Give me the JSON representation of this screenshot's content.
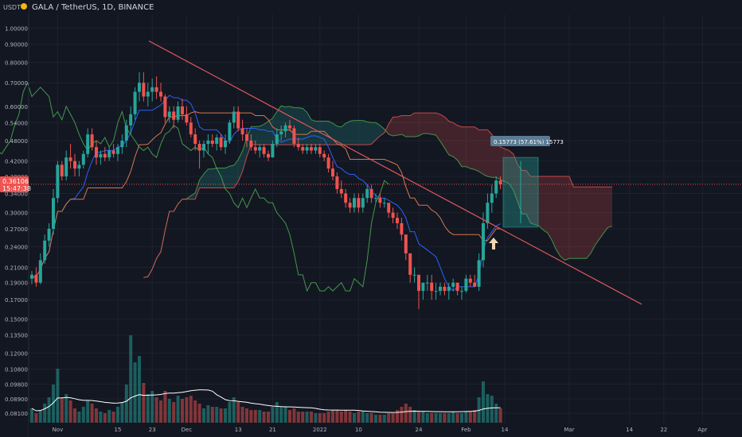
{
  "header": {
    "currency": "USDT",
    "title": "GALA / TetherUS, 1D, BINANCE"
  },
  "price_label": {
    "price": "0.36106",
    "countdown": "15:47:38"
  },
  "measure_label": "0.15773 (57.61%) 15773",
  "colors": {
    "background": "#131722",
    "grid": "#1e222d",
    "up": "#26a69a",
    "down": "#ef5350",
    "trendline": "#e2595d",
    "kijun": "#d7774a",
    "tenkan": "#2962ff",
    "lagging": "#4caf50",
    "spanA": "#4caf50",
    "spanB": "#ef5350",
    "volume_ma": "#ffffff",
    "arrow": "#f2d8b0"
  },
  "chart_data": {
    "type": "candlestick",
    "scale": "log",
    "ylim": [
      0.079,
      1.05
    ],
    "y_ticks": [
      "1.00000",
      "0.90000",
      "0.80000",
      "0.70000",
      "0.60000",
      "0.54000",
      "0.48000",
      "0.42000",
      "0.38000",
      "0.34000",
      "0.30000",
      "0.27000",
      "0.24000",
      "0.21000",
      "0.19000",
      "0.17000",
      "0.15000",
      "0.13500",
      "0.12000",
      "0.10800",
      "0.09800",
      "0.08900",
      "0.08100"
    ],
    "x_ticks": [
      "Nov",
      "15",
      "23",
      "Dec",
      "13",
      "21",
      "2022",
      "10",
      "24",
      "Feb",
      "14",
      "Mar",
      "14",
      "22",
      "Apr",
      "11"
    ],
    "candles": [
      [
        "2021-10-26",
        0.195,
        0.205,
        0.188,
        0.2
      ],
      [
        "2021-10-27",
        0.2,
        0.21,
        0.185,
        0.19
      ],
      [
        "2021-10-28",
        0.19,
        0.23,
        0.188,
        0.22
      ],
      [
        "2021-10-29",
        0.22,
        0.26,
        0.215,
        0.25
      ],
      [
        "2021-10-30",
        0.25,
        0.28,
        0.24,
        0.27
      ],
      [
        "2021-10-31",
        0.27,
        0.35,
        0.26,
        0.33
      ],
      [
        "2021-11-01",
        0.33,
        0.42,
        0.32,
        0.41
      ],
      [
        "2021-11-02",
        0.41,
        0.42,
        0.37,
        0.38
      ],
      [
        "2021-11-03",
        0.38,
        0.45,
        0.37,
        0.43
      ],
      [
        "2021-11-04",
        0.43,
        0.47,
        0.4,
        0.42
      ],
      [
        "2021-11-05",
        0.42,
        0.44,
        0.38,
        0.4
      ],
      [
        "2021-11-06",
        0.4,
        0.42,
        0.38,
        0.41
      ],
      [
        "2021-11-07",
        0.41,
        0.45,
        0.4,
        0.44
      ],
      [
        "2021-11-08",
        0.44,
        0.52,
        0.43,
        0.5
      ],
      [
        "2021-11-09",
        0.5,
        0.52,
        0.45,
        0.46
      ],
      [
        "2021-11-10",
        0.46,
        0.48,
        0.41,
        0.43
      ],
      [
        "2021-11-11",
        0.43,
        0.45,
        0.41,
        0.44
      ],
      [
        "2021-11-12",
        0.44,
        0.46,
        0.42,
        0.43
      ],
      [
        "2021-11-13",
        0.43,
        0.46,
        0.42,
        0.45
      ],
      [
        "2021-11-14",
        0.45,
        0.47,
        0.43,
        0.44
      ],
      [
        "2021-11-15",
        0.44,
        0.47,
        0.42,
        0.46
      ],
      [
        "2021-11-16",
        0.46,
        0.5,
        0.44,
        0.48
      ],
      [
        "2021-11-17",
        0.48,
        0.55,
        0.46,
        0.53
      ],
      [
        "2021-11-18",
        0.53,
        0.6,
        0.5,
        0.57
      ],
      [
        "2021-11-19",
        0.57,
        0.68,
        0.55,
        0.66
      ],
      [
        "2021-11-20",
        0.66,
        0.75,
        0.62,
        0.7
      ],
      [
        "2021-11-21",
        0.7,
        0.75,
        0.62,
        0.64
      ],
      [
        "2021-11-22",
        0.64,
        0.7,
        0.6,
        0.66
      ],
      [
        "2021-11-23",
        0.66,
        0.72,
        0.62,
        0.68
      ],
      [
        "2021-11-24",
        0.68,
        0.73,
        0.63,
        0.66
      ],
      [
        "2021-11-25",
        0.66,
        0.7,
        0.62,
        0.64
      ],
      [
        "2021-11-26",
        0.64,
        0.65,
        0.54,
        0.56
      ],
      [
        "2021-11-27",
        0.56,
        0.6,
        0.54,
        0.58
      ],
      [
        "2021-11-28",
        0.58,
        0.6,
        0.52,
        0.55
      ],
      [
        "2021-11-29",
        0.55,
        0.62,
        0.54,
        0.6
      ],
      [
        "2021-11-30",
        0.6,
        0.63,
        0.55,
        0.57
      ],
      [
        "2021-12-01",
        0.57,
        0.6,
        0.53,
        0.54
      ],
      [
        "2021-12-02",
        0.54,
        0.56,
        0.49,
        0.5
      ],
      [
        "2021-12-03",
        0.5,
        0.52,
        0.45,
        0.47
      ],
      [
        "2021-12-04",
        0.47,
        0.48,
        0.4,
        0.45
      ],
      [
        "2021-12-05",
        0.45,
        0.48,
        0.43,
        0.47
      ],
      [
        "2021-12-06",
        0.47,
        0.5,
        0.44,
        0.48
      ],
      [
        "2021-12-07",
        0.48,
        0.5,
        0.46,
        0.47
      ],
      [
        "2021-12-08",
        0.47,
        0.5,
        0.45,
        0.49
      ],
      [
        "2021-12-09",
        0.49,
        0.5,
        0.45,
        0.46
      ],
      [
        "2021-12-10",
        0.46,
        0.5,
        0.44,
        0.48
      ],
      [
        "2021-12-11",
        0.48,
        0.55,
        0.47,
        0.54
      ],
      [
        "2021-12-12",
        0.54,
        0.6,
        0.52,
        0.58
      ],
      [
        "2021-12-13",
        0.58,
        0.6,
        0.51,
        0.52
      ],
      [
        "2021-12-14",
        0.52,
        0.55,
        0.48,
        0.5
      ],
      [
        "2021-12-15",
        0.5,
        0.52,
        0.46,
        0.48
      ],
      [
        "2021-12-16",
        0.48,
        0.5,
        0.45,
        0.46
      ],
      [
        "2021-12-17",
        0.46,
        0.48,
        0.44,
        0.45
      ],
      [
        "2021-12-18",
        0.45,
        0.47,
        0.43,
        0.46
      ],
      [
        "2021-12-19",
        0.46,
        0.47,
        0.43,
        0.44
      ],
      [
        "2021-12-20",
        0.44,
        0.45,
        0.42,
        0.43
      ],
      [
        "2021-12-21",
        0.43,
        0.48,
        0.43,
        0.47
      ],
      [
        "2021-12-22",
        0.47,
        0.52,
        0.46,
        0.5
      ],
      [
        "2021-12-23",
        0.5,
        0.53,
        0.48,
        0.51
      ],
      [
        "2021-12-24",
        0.51,
        0.54,
        0.49,
        0.53
      ],
      [
        "2021-12-25",
        0.53,
        0.55,
        0.51,
        0.52
      ],
      [
        "2021-12-26",
        0.52,
        0.53,
        0.46,
        0.47
      ],
      [
        "2021-12-27",
        0.47,
        0.49,
        0.45,
        0.46
      ],
      [
        "2021-12-28",
        0.46,
        0.47,
        0.44,
        0.45
      ],
      [
        "2021-12-29",
        0.45,
        0.47,
        0.44,
        0.46
      ],
      [
        "2021-12-30",
        0.46,
        0.47,
        0.44,
        0.45
      ],
      [
        "2021-12-31",
        0.45,
        0.47,
        0.44,
        0.46
      ],
      [
        "2022-01-01",
        0.46,
        0.47,
        0.43,
        0.44
      ],
      [
        "2022-01-02",
        0.44,
        0.45,
        0.42,
        0.43
      ],
      [
        "2022-01-03",
        0.43,
        0.44,
        0.39,
        0.4
      ],
      [
        "2022-01-04",
        0.4,
        0.42,
        0.37,
        0.38
      ],
      [
        "2022-01-05",
        0.38,
        0.39,
        0.34,
        0.35
      ],
      [
        "2022-01-06",
        0.35,
        0.37,
        0.33,
        0.34
      ],
      [
        "2022-01-07",
        0.34,
        0.35,
        0.31,
        0.32
      ],
      [
        "2022-01-08",
        0.32,
        0.33,
        0.3,
        0.31
      ],
      [
        "2022-01-09",
        0.31,
        0.34,
        0.3,
        0.33
      ],
      [
        "2022-01-10",
        0.33,
        0.34,
        0.3,
        0.31
      ],
      [
        "2022-01-11",
        0.31,
        0.34,
        0.3,
        0.33
      ],
      [
        "2022-01-12",
        0.33,
        0.36,
        0.32,
        0.35
      ],
      [
        "2022-01-13",
        0.35,
        0.36,
        0.32,
        0.33
      ],
      [
        "2022-01-14",
        0.33,
        0.34,
        0.32,
        0.33
      ],
      [
        "2022-01-15",
        0.33,
        0.34,
        0.31,
        0.32
      ],
      [
        "2022-01-16",
        0.32,
        0.33,
        0.31,
        0.32
      ],
      [
        "2022-01-17",
        0.32,
        0.32,
        0.29,
        0.3
      ],
      [
        "2022-01-18",
        0.3,
        0.31,
        0.28,
        0.29
      ],
      [
        "2022-01-19",
        0.29,
        0.3,
        0.27,
        0.28
      ],
      [
        "2022-01-20",
        0.28,
        0.29,
        0.25,
        0.26
      ],
      [
        "2022-01-21",
        0.26,
        0.26,
        0.22,
        0.23
      ],
      [
        "2022-01-22",
        0.23,
        0.23,
        0.19,
        0.2
      ],
      [
        "2022-01-23",
        0.2,
        0.21,
        0.19,
        0.2
      ],
      [
        "2022-01-24",
        0.2,
        0.2,
        0.16,
        0.18
      ],
      [
        "2022-01-25",
        0.18,
        0.19,
        0.17,
        0.19
      ],
      [
        "2022-01-26",
        0.19,
        0.2,
        0.18,
        0.19
      ],
      [
        "2022-01-27",
        0.19,
        0.2,
        0.17,
        0.18
      ],
      [
        "2022-01-28",
        0.18,
        0.19,
        0.17,
        0.18
      ],
      [
        "2022-01-29",
        0.18,
        0.19,
        0.175,
        0.185
      ],
      [
        "2022-01-30",
        0.185,
        0.19,
        0.175,
        0.18
      ],
      [
        "2022-01-31",
        0.18,
        0.19,
        0.17,
        0.185
      ],
      [
        "2022-02-01",
        0.185,
        0.195,
        0.18,
        0.19
      ],
      [
        "2022-02-02",
        0.19,
        0.19,
        0.175,
        0.18
      ],
      [
        "2022-02-03",
        0.18,
        0.185,
        0.17,
        0.18
      ],
      [
        "2022-02-04",
        0.18,
        0.2,
        0.178,
        0.195
      ],
      [
        "2022-02-05",
        0.195,
        0.2,
        0.185,
        0.19
      ],
      [
        "2022-02-06",
        0.19,
        0.2,
        0.185,
        0.185
      ],
      [
        "2022-02-07",
        0.185,
        0.23,
        0.18,
        0.22
      ],
      [
        "2022-02-08",
        0.22,
        0.3,
        0.21,
        0.28
      ],
      [
        "2022-02-09",
        0.28,
        0.34,
        0.27,
        0.32
      ],
      [
        "2022-02-10",
        0.32,
        0.36,
        0.3,
        0.34
      ],
      [
        "2022-02-11",
        0.34,
        0.38,
        0.33,
        0.37
      ],
      [
        "2022-02-12",
        0.37,
        0.38,
        0.35,
        0.361
      ]
    ],
    "volume": [
      0.9,
      0.6,
      0.8,
      1.2,
      1.6,
      2.4,
      3.4,
      1.6,
      1.8,
      1.4,
      0.9,
      0.7,
      1.0,
      1.4,
      1.2,
      0.9,
      0.7,
      0.6,
      0.8,
      0.7,
      1.0,
      1.3,
      2.4,
      5.5,
      3.8,
      4.2,
      2.5,
      1.8,
      2.0,
      1.6,
      1.4,
      2.0,
      1.5,
      1.3,
      1.7,
      1.5,
      1.6,
      1.7,
      1.4,
      1.2,
      0.9,
      1.1,
      1.0,
      1.0,
      0.9,
      0.9,
      1.3,
      1.6,
      1.3,
      1.0,
      0.9,
      0.8,
      0.8,
      0.8,
      0.7,
      0.7,
      1.0,
      1.3,
      1.0,
      1.0,
      0.8,
      0.9,
      0.7,
      0.7,
      0.7,
      0.7,
      0.6,
      0.6,
      0.6,
      0.7,
      0.8,
      0.8,
      0.7,
      0.8,
      0.7,
      0.6,
      0.7,
      0.7,
      0.6,
      0.6,
      0.5,
      0.5,
      0.5,
      0.6,
      0.6,
      0.8,
      1.0,
      1.2,
      1.0,
      0.8,
      0.7,
      0.7,
      0.6,
      0.6,
      0.6,
      0.6,
      0.6,
      0.6,
      0.7,
      0.6,
      0.6,
      0.7,
      0.7,
      0.8,
      1.6,
      2.6,
      1.8,
      1.7,
      1.2,
      0.9
    ]
  }
}
